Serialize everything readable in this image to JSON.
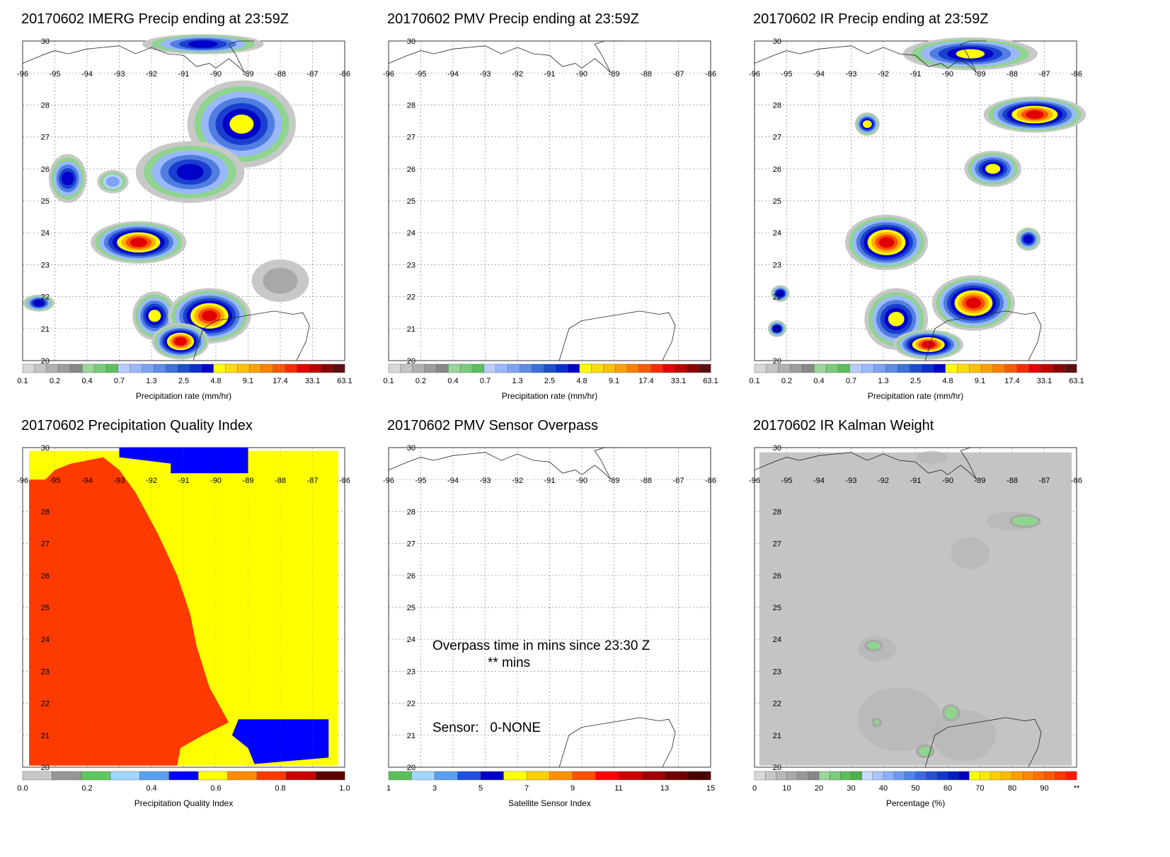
{
  "chart_data": [
    {
      "type": "heatmap",
      "title": "20170602 IMERG Precip ending at 23:59Z",
      "xlabel": "Precipitation rate (mm/hr)",
      "x_ticks": [
        "-96",
        "-95",
        "-94",
        "-93",
        "-92",
        "-91",
        "-90",
        "-89",
        "-88",
        "-87",
        "-86"
      ],
      "y_ticks": [
        "30",
        "28",
        "27",
        "26",
        "25",
        "24",
        "23",
        "22",
        "21",
        "20"
      ],
      "xlim": [
        -96,
        -86
      ],
      "ylim": [
        20,
        30
      ],
      "colorbar_labels": [
        "0.1",
        "0.2",
        "0.4",
        "0.7",
        "1.3",
        "2.5",
        "4.8",
        "9.1",
        "17.4",
        "33.1",
        "63.1"
      ],
      "colorbar_colors": [
        "#d8d8d8",
        "#c4c4c4",
        "#b0b0b0",
        "#9c9c9c",
        "#888888",
        "#9ad69a",
        "#7acc7a",
        "#5cbf5c",
        "#b8ccff",
        "#9bb8ff",
        "#7ea3f5",
        "#5f8ae6",
        "#3f6fd8",
        "#1f4ecc",
        "#0a2ecc",
        "#0000c8",
        "#ffff00",
        "#ffdd00",
        "#ffc000",
        "#ffa000",
        "#ff8000",
        "#ff5a00",
        "#ff2a00",
        "#e60000",
        "#c00000",
        "#8b0000",
        "#5a1010"
      ],
      "blobs": [
        {
          "lon": -90.4,
          "lat": 29.9,
          "rx": 1.8,
          "ry": 0.25,
          "max": "blue"
        },
        {
          "lon": -89.2,
          "lat": 27.4,
          "rx": 1.6,
          "ry": 1.3,
          "max": "yellow"
        },
        {
          "lon": -90.8,
          "lat": 25.9,
          "rx": 1.6,
          "ry": 0.9,
          "max": "blue"
        },
        {
          "lon": -94.6,
          "lat": 25.7,
          "rx": 0.5,
          "ry": 0.7,
          "max": "blue"
        },
        {
          "lon": -93.2,
          "lat": 25.6,
          "rx": 0.4,
          "ry": 0.3,
          "max": "lightblue"
        },
        {
          "lon": -92.4,
          "lat": 23.7,
          "rx": 1.4,
          "ry": 0.6,
          "max": "red"
        },
        {
          "lon": -91.9,
          "lat": 21.4,
          "rx": 0.6,
          "ry": 0.7,
          "max": "yellow"
        },
        {
          "lon": -90.2,
          "lat": 21.4,
          "rx": 1.2,
          "ry": 0.8,
          "max": "red"
        },
        {
          "lon": -91.1,
          "lat": 20.6,
          "rx": 0.8,
          "ry": 0.5,
          "max": "red"
        },
        {
          "lon": -95.5,
          "lat": 21.8,
          "rx": 0.4,
          "ry": 0.2,
          "max": "blue"
        },
        {
          "lon": -88.0,
          "lat": 22.5,
          "rx": 0.8,
          "ry": 0.6,
          "max": "gray"
        }
      ]
    },
    {
      "type": "heatmap",
      "title": "20170602 PMV Precip ending at 23:59Z",
      "xlabel": "Precipitation rate (mm/hr)",
      "x_ticks": [
        "-96",
        "-95",
        "-94",
        "-93",
        "-92",
        "-91",
        "-90",
        "-89",
        "-88",
        "-87",
        "-86"
      ],
      "y_ticks": [
        "30",
        "28",
        "27",
        "26",
        "25",
        "24",
        "23",
        "22",
        "21",
        "20"
      ],
      "xlim": [
        -96,
        -86
      ],
      "ylim": [
        20,
        30
      ],
      "colorbar_labels": [
        "0.1",
        "0.2",
        "0.4",
        "0.7",
        "1.3",
        "2.5",
        "4.8",
        "9.1",
        "17.4",
        "33.1",
        "63.1"
      ],
      "blobs": []
    },
    {
      "type": "heatmap",
      "title": "20170602 IR Precip ending at 23:59Z",
      "xlabel": "Precipitation rate (mm/hr)",
      "x_ticks": [
        "-96",
        "-95",
        "-94",
        "-93",
        "-92",
        "-91",
        "-90",
        "-89",
        "-88",
        "-87",
        "-86"
      ],
      "y_ticks": [
        "30",
        "28",
        "27",
        "26",
        "25",
        "24",
        "23",
        "22",
        "21",
        "20"
      ],
      "xlim": [
        -96,
        -86
      ],
      "ylim": [
        20,
        30
      ],
      "colorbar_labels": [
        "0.1",
        "0.2",
        "0.4",
        "0.7",
        "1.3",
        "2.5",
        "4.8",
        "9.1",
        "17.4",
        "33.1",
        "63.1"
      ],
      "blobs": [
        {
          "lon": -89.3,
          "lat": 29.6,
          "rx": 2.0,
          "ry": 0.45,
          "max": "yellow"
        },
        {
          "lon": -87.3,
          "lat": 27.7,
          "rx": 1.5,
          "ry": 0.5,
          "max": "red"
        },
        {
          "lon": -88.6,
          "lat": 26.0,
          "rx": 0.8,
          "ry": 0.5,
          "max": "yellow"
        },
        {
          "lon": -92.5,
          "lat": 27.4,
          "rx": 0.3,
          "ry": 0.3,
          "max": "yellow"
        },
        {
          "lon": -91.9,
          "lat": 23.7,
          "rx": 1.2,
          "ry": 0.8,
          "max": "red"
        },
        {
          "lon": -91.6,
          "lat": 21.3,
          "rx": 0.9,
          "ry": 0.9,
          "max": "yellow"
        },
        {
          "lon": -89.2,
          "lat": 21.8,
          "rx": 1.2,
          "ry": 0.8,
          "max": "red"
        },
        {
          "lon": -90.6,
          "lat": 20.5,
          "rx": 1.0,
          "ry": 0.4,
          "max": "red"
        },
        {
          "lon": -95.2,
          "lat": 22.1,
          "rx": 0.2,
          "ry": 0.2,
          "max": "blue"
        },
        {
          "lon": -95.3,
          "lat": 21.0,
          "rx": 0.2,
          "ry": 0.2,
          "max": "blue"
        },
        {
          "lon": -87.5,
          "lat": 23.8,
          "rx": 0.3,
          "ry": 0.3,
          "max": "blue"
        }
      ]
    },
    {
      "type": "heatmap",
      "title": "20170602 Precipitation Quality Index",
      "xlabel": "Precipitation Quality Index",
      "x_ticks": [
        "-96",
        "-95",
        "-94",
        "-93",
        "-92",
        "-91",
        "-90",
        "-89",
        "-88",
        "-87",
        "-86"
      ],
      "y_ticks": [
        "30",
        "28",
        "27",
        "26",
        "25",
        "24",
        "23",
        "22",
        "21",
        "20"
      ],
      "xlim": [
        -96,
        -86
      ],
      "ylim": [
        20,
        30
      ],
      "colorbar_labels": [
        "0.0",
        "0.2",
        "0.4",
        "0.6",
        "0.8",
        "1.0"
      ],
      "colorbar_colors": [
        "#c8c8c8",
        "#969696",
        "#5ec85e",
        "#a0d8ff",
        "#5aa0f0",
        "#0000ff",
        "#ffff00",
        "#ff8c00",
        "#ff3a00",
        "#c80000",
        "#5a0000"
      ],
      "regions": [
        {
          "name": "yellow field",
          "value": 0.6
        },
        {
          "name": "red swath",
          "value": 0.8
        },
        {
          "name": "blue top",
          "value": 0.5
        },
        {
          "name": "blue bottom-right",
          "value": 0.5
        }
      ]
    },
    {
      "type": "heatmap",
      "title": "20170602 PMV Sensor Overpass",
      "xlabel": "Satellite Sensor Index",
      "x_ticks": [
        "-96",
        "-95",
        "-94",
        "-93",
        "-92",
        "-91",
        "-90",
        "-89",
        "-88",
        "-87",
        "-86"
      ],
      "y_ticks": [
        "30",
        "28",
        "27",
        "26",
        "25",
        "24",
        "23",
        "22",
        "21",
        "20"
      ],
      "xlim": [
        -96,
        -86
      ],
      "ylim": [
        20,
        30
      ],
      "colorbar_labels": [
        "1",
        "3",
        "5",
        "7",
        "9",
        "11",
        "13",
        "15"
      ],
      "colorbar_colors": [
        "#5cbf5c",
        "#a0d8ff",
        "#5aa0f0",
        "#2050e0",
        "#0000c8",
        "#ffff00",
        "#ffd000",
        "#ff9000",
        "#ff5000",
        "#ff0000",
        "#d00000",
        "#a00000",
        "#700000",
        "#4a0000"
      ],
      "annotations": [
        "Overpass time in mins since 23:30 Z",
        "** mins",
        "Sensor:   0-NONE"
      ]
    },
    {
      "type": "heatmap",
      "title": "20170602 IR Kalman Weight",
      "xlabel": "Percentage (%)",
      "x_ticks": [
        "-96",
        "-95",
        "-94",
        "-93",
        "-92",
        "-91",
        "-90",
        "-89",
        "-88",
        "-87",
        "-86"
      ],
      "y_ticks": [
        "30",
        "28",
        "27",
        "26",
        "25",
        "24",
        "23",
        "22",
        "21",
        "20"
      ],
      "xlim": [
        -96,
        -86
      ],
      "ylim": [
        20,
        30
      ],
      "colorbar_labels": [
        "0",
        "10",
        "20",
        "30",
        "40",
        "50",
        "60",
        "70",
        "80",
        "90",
        "**"
      ],
      "blobs": [
        {
          "lon": -87.6,
          "lat": 27.7,
          "rx": 0.4,
          "ry": 0.15,
          "max": "green"
        },
        {
          "lon": -92.3,
          "lat": 23.8,
          "rx": 0.2,
          "ry": 0.12,
          "max": "green"
        },
        {
          "lon": -89.9,
          "lat": 21.7,
          "rx": 0.2,
          "ry": 0.2,
          "max": "green"
        },
        {
          "lon": -90.7,
          "lat": 20.5,
          "rx": 0.2,
          "ry": 0.15,
          "max": "green"
        },
        {
          "lon": -92.2,
          "lat": 21.4,
          "rx": 0.08,
          "ry": 0.08,
          "max": "green"
        }
      ]
    }
  ]
}
